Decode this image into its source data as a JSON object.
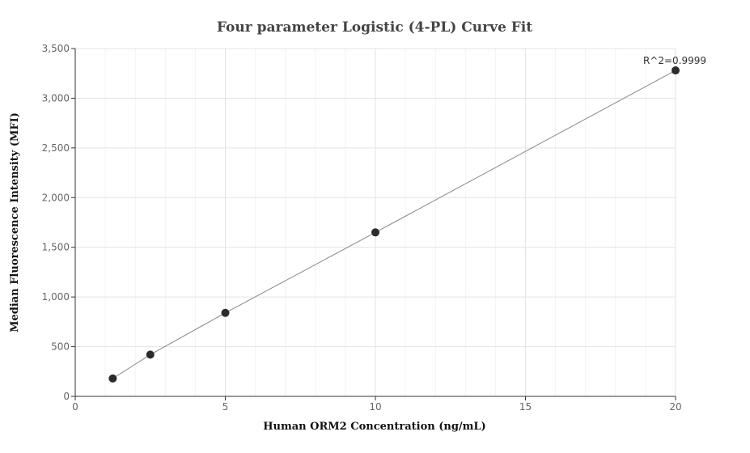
{
  "chart_data": {
    "type": "scatter",
    "title": "Four parameter Logistic (4-PL) Curve Fit",
    "xlabel": "Human ORM2 Concentration (ng/mL)",
    "ylabel": "Median Fluorescence Intensity (MFI)",
    "xlim": [
      0,
      20
    ],
    "ylim": [
      0,
      3500
    ],
    "x_ticks": [
      0,
      5,
      10,
      15,
      20
    ],
    "x_tick_labels": [
      "0",
      "5",
      "10",
      "15",
      "20"
    ],
    "y_ticks": [
      0,
      500,
      1000,
      1500,
      2000,
      2500,
      3000,
      3500
    ],
    "y_tick_labels": [
      "0",
      "500",
      "1,000",
      "1,500",
      "2,000",
      "2,500",
      "3,000",
      "3,500"
    ],
    "grid": true,
    "series": [
      {
        "x": [
          1.25,
          2.5,
          5,
          10,
          20
        ],
        "y": [
          180,
          420,
          840,
          1650,
          3280
        ],
        "marker_color": "#2b2b2b",
        "line_color": "#888888"
      }
    ],
    "annotation": "R^2=0.9999"
  }
}
